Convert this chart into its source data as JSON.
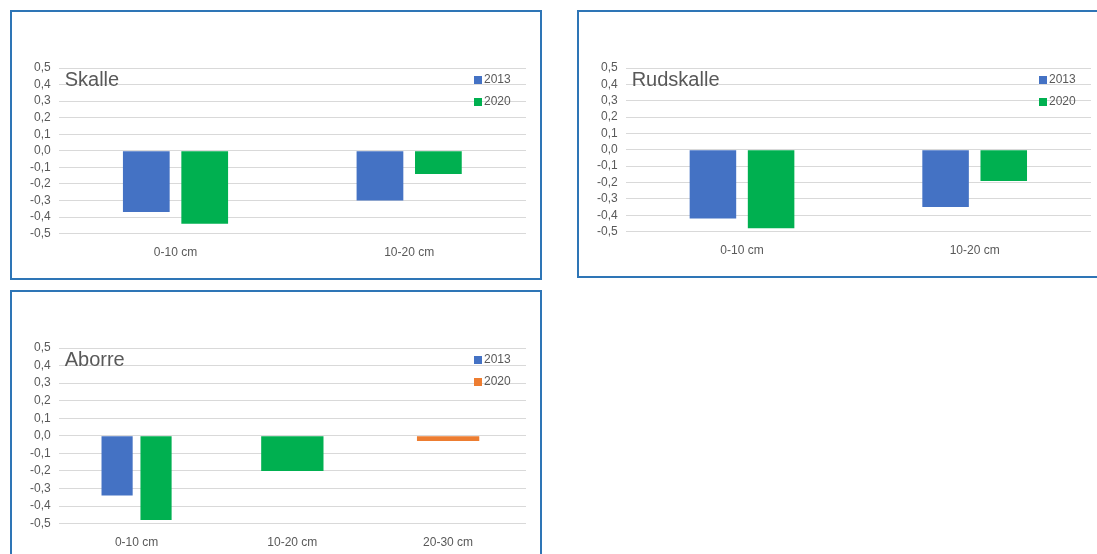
{
  "chart_data": [
    {
      "type": "bar",
      "title": "Skalle",
      "categories": [
        "0-10 cm",
        "10-20 cm"
      ],
      "series": [
        {
          "name": "2013",
          "color": "#4472c4",
          "values": [
            -0.37,
            -0.3
          ]
        },
        {
          "name": "2020",
          "color": "#00b050",
          "values": [
            -0.44,
            -0.14
          ]
        }
      ],
      "ylim": [
        -0.5,
        0.5
      ],
      "yticks": [
        {
          "value": -0.5,
          "label": "-0,5"
        },
        {
          "value": -0.4,
          "label": "-0,4"
        },
        {
          "value": -0.3,
          "label": "-0,3"
        },
        {
          "value": -0.2,
          "label": "-0,2"
        },
        {
          "value": -0.1,
          "label": "-0,1"
        },
        {
          "value": 0,
          "label": "0,0"
        },
        {
          "value": 0.1,
          "label": "0,1"
        },
        {
          "value": 0.2,
          "label": "0,2"
        },
        {
          "value": 0.3,
          "label": "0,3"
        },
        {
          "value": 0.4,
          "label": "0,4"
        },
        {
          "value": 0.5,
          "label": "0,5"
        }
      ],
      "grid": "y",
      "legend": "top right"
    },
    {
      "type": "bar",
      "title": "Rudskalle",
      "categories": [
        "0-10 cm",
        "10-20 cm"
      ],
      "series": [
        {
          "name": "2013",
          "color": "#4472c4",
          "values": [
            -0.42,
            -0.35
          ]
        },
        {
          "name": "2020",
          "color": "#00b050",
          "values": [
            -0.48,
            -0.19
          ]
        }
      ],
      "ylim": [
        -0.5,
        0.5
      ],
      "yticks": [
        {
          "value": -0.5,
          "label": "-0,5"
        },
        {
          "value": -0.4,
          "label": "-0,4"
        },
        {
          "value": -0.3,
          "label": "-0,3"
        },
        {
          "value": -0.2,
          "label": "-0,2"
        },
        {
          "value": -0.1,
          "label": "-0,1"
        },
        {
          "value": 0,
          "label": "0,0"
        },
        {
          "value": 0.1,
          "label": "0,1"
        },
        {
          "value": 0.2,
          "label": "0,2"
        },
        {
          "value": 0.3,
          "label": "0,3"
        },
        {
          "value": 0.4,
          "label": "0,4"
        },
        {
          "value": 0.5,
          "label": "0,5"
        }
      ],
      "grid": "y",
      "legend": "top right"
    },
    {
      "type": "bar",
      "title": "Aborre",
      "categories": [
        "0-10 cm",
        "10-20 cm",
        "20-30 cm"
      ],
      "series": [
        {
          "name": "2013",
          "color": "#4472c4",
          "values": [
            -0.34,
            null,
            null
          ]
        },
        {
          "name": "2020",
          "color": "#ed7d31",
          "colors": [
            "#00b050",
            "#00b050",
            "#ed7d31"
          ],
          "values": [
            -0.48,
            -0.2,
            -0.03
          ]
        }
      ],
      "ylim": [
        -0.5,
        0.5
      ],
      "yticks": [
        {
          "value": -0.5,
          "label": "-0,5"
        },
        {
          "value": -0.4,
          "label": "-0,4"
        },
        {
          "value": -0.3,
          "label": "-0,3"
        },
        {
          "value": -0.2,
          "label": "-0,2"
        },
        {
          "value": -0.1,
          "label": "-0,1"
        },
        {
          "value": 0,
          "label": "0,0"
        },
        {
          "value": 0.1,
          "label": "0,1"
        },
        {
          "value": 0.2,
          "label": "0,2"
        },
        {
          "value": 0.3,
          "label": "0,3"
        },
        {
          "value": 0.4,
          "label": "0,4"
        },
        {
          "value": 0.5,
          "label": "0,5"
        }
      ],
      "grid": "y",
      "legend": "top right"
    }
  ]
}
